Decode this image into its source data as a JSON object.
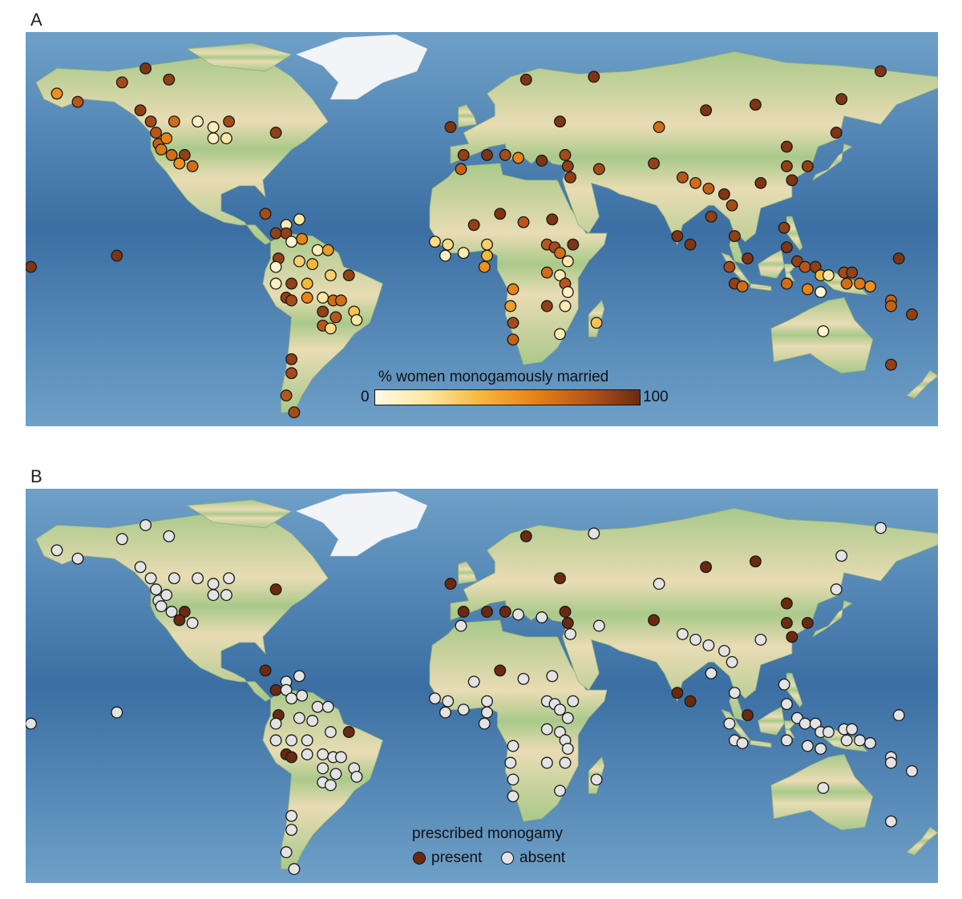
{
  "panels": {
    "a": {
      "label": "A"
    },
    "b": {
      "label": "B"
    }
  },
  "colors": {
    "ocean_dark": "#3b6fa3",
    "ocean_light": "#6ea0c8",
    "land_green": "#a9c98a",
    "land_tan": "#e9dcb4",
    "ice": "#f2f4f7",
    "present": "#6b2a10",
    "absent": "#e3e3e3"
  },
  "colorbar": {
    "title": "% women monogamously married",
    "min_label": "0",
    "max_label": "100",
    "stops": [
      "#fff9e4",
      "#fde7a2",
      "#f7b73a",
      "#e88314",
      "#b8561a",
      "#6b2a10"
    ]
  },
  "legend_b": {
    "title": "prescribed monogamy",
    "present_label": "present",
    "absent_label": "absent"
  },
  "sites": [
    {
      "lon": -160,
      "lat": 62,
      "pct": 55,
      "prescribed": false
    },
    {
      "lon": -152,
      "lat": 59,
      "pct": 80,
      "prescribed": false
    },
    {
      "lon": -135,
      "lat": 66,
      "pct": 85,
      "prescribed": false
    },
    {
      "lon": -126,
      "lat": 71,
      "pct": 95,
      "prescribed": false
    },
    {
      "lon": -128,
      "lat": 56,
      "pct": 90,
      "prescribed": false
    },
    {
      "lon": -124,
      "lat": 52,
      "pct": 85,
      "prescribed": false
    },
    {
      "lon": -122,
      "lat": 48,
      "pct": 80,
      "prescribed": false
    },
    {
      "lon": -121,
      "lat": 44,
      "pct": 75,
      "prescribed": false
    },
    {
      "lon": -120,
      "lat": 42,
      "pct": 65,
      "prescribed": false
    },
    {
      "lon": -118,
      "lat": 46,
      "pct": 60,
      "prescribed": false
    },
    {
      "lon": -116,
      "lat": 40,
      "pct": 70,
      "prescribed": false
    },
    {
      "lon": -111,
      "lat": 40,
      "pct": 90,
      "prescribed": true
    },
    {
      "lon": -113,
      "lat": 37,
      "pct": 55,
      "prescribed": true
    },
    {
      "lon": -108,
      "lat": 36,
      "pct": 70,
      "prescribed": false
    },
    {
      "lon": -115,
      "lat": 52,
      "pct": 70,
      "prescribed": false
    },
    {
      "lon": -106,
      "lat": 52,
      "pct": 10,
      "prescribed": false
    },
    {
      "lon": -100,
      "lat": 50,
      "pct": 15,
      "prescribed": false
    },
    {
      "lon": -100,
      "lat": 46,
      "pct": 10,
      "prescribed": false
    },
    {
      "lon": -95,
      "lat": 46,
      "pct": 20,
      "prescribed": false
    },
    {
      "lon": -94,
      "lat": 52,
      "pct": 85,
      "prescribed": false
    },
    {
      "lon": -76,
      "lat": 48,
      "pct": 90,
      "prescribed": true
    },
    {
      "lon": -117,
      "lat": 67,
      "pct": 90,
      "prescribed": false
    },
    {
      "lon": -170,
      "lat": 0,
      "pct": 95,
      "prescribed": false
    },
    {
      "lon": -137,
      "lat": 4,
      "pct": 95,
      "prescribed": false
    },
    {
      "lon": -72,
      "lat": 15,
      "pct": 15,
      "prescribed": false
    },
    {
      "lon": -67,
      "lat": 17,
      "pct": 20,
      "prescribed": false
    },
    {
      "lon": -80,
      "lat": 19,
      "pct": 85,
      "prescribed": true
    },
    {
      "lon": -76,
      "lat": 12,
      "pct": 90,
      "prescribed": true
    },
    {
      "lon": -72,
      "lat": 12,
      "pct": 90,
      "prescribed": false
    },
    {
      "lon": -70,
      "lat": 9,
      "pct": 5,
      "prescribed": false
    },
    {
      "lon": -66,
      "lat": 10,
      "pct": 60,
      "prescribed": false
    },
    {
      "lon": -60,
      "lat": 6,
      "pct": 15,
      "prescribed": false
    },
    {
      "lon": -56,
      "lat": 6,
      "pct": 50,
      "prescribed": false
    },
    {
      "lon": -75,
      "lat": 3,
      "pct": 90,
      "prescribed": true
    },
    {
      "lon": -76,
      "lat": 0,
      "pct": 5,
      "prescribed": false
    },
    {
      "lon": -67,
      "lat": 2,
      "pct": 30,
      "prescribed": false
    },
    {
      "lon": -62,
      "lat": 1,
      "pct": 40,
      "prescribed": false
    },
    {
      "lon": -55,
      "lat": -3,
      "pct": 30,
      "prescribed": false
    },
    {
      "lon": -48,
      "lat": -3,
      "pct": 90,
      "prescribed": true
    },
    {
      "lon": -76,
      "lat": -6,
      "pct": 10,
      "prescribed": false
    },
    {
      "lon": -70,
      "lat": -6,
      "pct": 90,
      "prescribed": false
    },
    {
      "lon": -64,
      "lat": -6,
      "pct": 40,
      "prescribed": false
    },
    {
      "lon": -72,
      "lat": -11,
      "pct": 90,
      "prescribed": true
    },
    {
      "lon": -70,
      "lat": -12,
      "pct": 85,
      "prescribed": true
    },
    {
      "lon": -64,
      "lat": -11,
      "pct": 60,
      "prescribed": false
    },
    {
      "lon": -58,
      "lat": -11,
      "pct": 20,
      "prescribed": false
    },
    {
      "lon": -54,
      "lat": -12,
      "pct": 70,
      "prescribed": false
    },
    {
      "lon": -51,
      "lat": -12,
      "pct": 70,
      "prescribed": false
    },
    {
      "lon": -58,
      "lat": -16,
      "pct": 90,
      "prescribed": false
    },
    {
      "lon": -53,
      "lat": -18,
      "pct": 80,
      "prescribed": false
    },
    {
      "lon": -46,
      "lat": -16,
      "pct": 35,
      "prescribed": false
    },
    {
      "lon": -45,
      "lat": -19,
      "pct": 20,
      "prescribed": false
    },
    {
      "lon": -58,
      "lat": -21,
      "pct": 80,
      "prescribed": false
    },
    {
      "lon": -55,
      "lat": -22,
      "pct": 25,
      "prescribed": false
    },
    {
      "lon": -70,
      "lat": -33,
      "pct": 90,
      "prescribed": false
    },
    {
      "lon": -70,
      "lat": -38,
      "pct": 85,
      "prescribed": false
    },
    {
      "lon": -72,
      "lat": -46,
      "pct": 80,
      "prescribed": false
    },
    {
      "lon": -69,
      "lat": -52,
      "pct": 85,
      "prescribed": false
    },
    {
      "lon": -9,
      "lat": 50,
      "pct": 95,
      "prescribed": true
    },
    {
      "lon": 20,
      "lat": 67,
      "pct": 95,
      "prescribed": true
    },
    {
      "lon": 46,
      "lat": 68,
      "pct": 95,
      "prescribed": false
    },
    {
      "lon": 33,
      "lat": 52,
      "pct": 95,
      "prescribed": true
    },
    {
      "lon": -4,
      "lat": 40,
      "pct": 90,
      "prescribed": true
    },
    {
      "lon": -5,
      "lat": 35,
      "pct": 75,
      "prescribed": false
    },
    {
      "lon": 5,
      "lat": 40,
      "pct": 95,
      "prescribed": true
    },
    {
      "lon": 12,
      "lat": 40,
      "pct": 85,
      "prescribed": true
    },
    {
      "lon": 17,
      "lat": 39,
      "pct": 60,
      "prescribed": false
    },
    {
      "lon": 26,
      "lat": 38,
      "pct": 95,
      "prescribed": false
    },
    {
      "lon": 35,
      "lat": 40,
      "pct": 85,
      "prescribed": true
    },
    {
      "lon": 36,
      "lat": 36,
      "pct": 90,
      "prescribed": true
    },
    {
      "lon": 37,
      "lat": 32,
      "pct": 90,
      "prescribed": false
    },
    {
      "lon": 10,
      "lat": 19,
      "pct": 95,
      "prescribed": true
    },
    {
      "lon": 0,
      "lat": 15,
      "pct": 90,
      "prescribed": false
    },
    {
      "lon": 19,
      "lat": 16,
      "pct": 80,
      "prescribed": false
    },
    {
      "lon": 30,
      "lat": 17,
      "pct": 95,
      "prescribed": false
    },
    {
      "lon": -15,
      "lat": 9,
      "pct": 25,
      "prescribed": false
    },
    {
      "lon": -10,
      "lat": 8,
      "pct": 25,
      "prescribed": false
    },
    {
      "lon": -4,
      "lat": 5,
      "pct": 15,
      "prescribed": false
    },
    {
      "lon": -11,
      "lat": 4,
      "pct": 10,
      "prescribed": false
    },
    {
      "lon": 5,
      "lat": 8,
      "pct": 30,
      "prescribed": false
    },
    {
      "lon": 5,
      "lat": 4,
      "pct": 40,
      "prescribed": false
    },
    {
      "lon": 4,
      "lat": 0,
      "pct": 55,
      "prescribed": false
    },
    {
      "lon": 28,
      "lat": 8,
      "pct": 80,
      "prescribed": false
    },
    {
      "lon": 31,
      "lat": 7,
      "pct": 85,
      "prescribed": false
    },
    {
      "lon": 33,
      "lat": 5,
      "pct": 70,
      "prescribed": false
    },
    {
      "lon": 38,
      "lat": 8,
      "pct": 95,
      "prescribed": false
    },
    {
      "lon": 36,
      "lat": 2,
      "pct": 20,
      "prescribed": false
    },
    {
      "lon": 28,
      "lat": -2,
      "pct": 70,
      "prescribed": false
    },
    {
      "lon": 33,
      "lat": -3,
      "pct": 15,
      "prescribed": false
    },
    {
      "lon": 35,
      "lat": -6,
      "pct": 80,
      "prescribed": false
    },
    {
      "lon": 36,
      "lat": -9,
      "pct": 10,
      "prescribed": false
    },
    {
      "lon": 15,
      "lat": -8,
      "pct": 60,
      "prescribed": false
    },
    {
      "lon": 14,
      "lat": -14,
      "pct": 50,
      "prescribed": false
    },
    {
      "lon": 28,
      "lat": -14,
      "pct": 90,
      "prescribed": false
    },
    {
      "lon": 35,
      "lat": -14,
      "pct": 15,
      "prescribed": false
    },
    {
      "lon": 15,
      "lat": -20,
      "pct": 85,
      "prescribed": false
    },
    {
      "lon": 33,
      "lat": -24,
      "pct": 15,
      "prescribed": false
    },
    {
      "lon": 15,
      "lat": -26,
      "pct": 75,
      "prescribed": false
    },
    {
      "lon": 47,
      "lat": -20,
      "pct": 35,
      "prescribed": false
    },
    {
      "lon": 48,
      "lat": 35,
      "pct": 85,
      "prescribed": false
    },
    {
      "lon": 71,
      "lat": 50,
      "pct": 70,
      "prescribed": false
    },
    {
      "lon": 69,
      "lat": 37,
      "pct": 90,
      "prescribed": true
    },
    {
      "lon": 80,
      "lat": 32,
      "pct": 80,
      "prescribed": false
    },
    {
      "lon": 85,
      "lat": 30,
      "pct": 70,
      "prescribed": false
    },
    {
      "lon": 90,
      "lat": 28,
      "pct": 75,
      "prescribed": false
    },
    {
      "lon": 96,
      "lat": 26,
      "pct": 95,
      "prescribed": false
    },
    {
      "lon": 99,
      "lat": 22,
      "pct": 85,
      "prescribed": false
    },
    {
      "lon": 91,
      "lat": 18,
      "pct": 90,
      "prescribed": false
    },
    {
      "lon": 110,
      "lat": 30,
      "pct": 95,
      "prescribed": false
    },
    {
      "lon": 89,
      "lat": 56,
      "pct": 95,
      "prescribed": true
    },
    {
      "lon": 108,
      "lat": 58,
      "pct": 95,
      "prescribed": true
    },
    {
      "lon": 120,
      "lat": 43,
      "pct": 95,
      "prescribed": true
    },
    {
      "lon": 120,
      "lat": 36,
      "pct": 90,
      "prescribed": true
    },
    {
      "lon": 122,
      "lat": 31,
      "pct": 95,
      "prescribed": true
    },
    {
      "lon": 128,
      "lat": 36,
      "pct": 90,
      "prescribed": true
    },
    {
      "lon": 139,
      "lat": 48,
      "pct": 95,
      "prescribed": false
    },
    {
      "lon": 141,
      "lat": 60,
      "pct": 95,
      "prescribed": false
    },
    {
      "lon": 156,
      "lat": 70,
      "pct": 95,
      "prescribed": false
    },
    {
      "lon": 78,
      "lat": 11,
      "pct": 95,
      "prescribed": true
    },
    {
      "lon": 83,
      "lat": 8,
      "pct": 95,
      "prescribed": true
    },
    {
      "lon": 100,
      "lat": 11,
      "pct": 90,
      "prescribed": false
    },
    {
      "lon": 105,
      "lat": 3,
      "pct": 95,
      "prescribed": true
    },
    {
      "lon": 98,
      "lat": 0,
      "pct": 85,
      "prescribed": false
    },
    {
      "lon": 100,
      "lat": -6,
      "pct": 90,
      "prescribed": false
    },
    {
      "lon": 103,
      "lat": -7,
      "pct": 70,
      "prescribed": false
    },
    {
      "lon": 119,
      "lat": 14,
      "pct": 90,
      "prescribed": false
    },
    {
      "lon": 120,
      "lat": 7,
      "pct": 95,
      "prescribed": false
    },
    {
      "lon": 124,
      "lat": 2,
      "pct": 90,
      "prescribed": false
    },
    {
      "lon": 127,
      "lat": 0,
      "pct": 80,
      "prescribed": false
    },
    {
      "lon": 131,
      "lat": 0,
      "pct": 90,
      "prescribed": false
    },
    {
      "lon": 133,
      "lat": -3,
      "pct": 40,
      "prescribed": false
    },
    {
      "lon": 136,
      "lat": -3,
      "pct": 20,
      "prescribed": false
    },
    {
      "lon": 142,
      "lat": -2,
      "pct": 85,
      "prescribed": false
    },
    {
      "lon": 145,
      "lat": -2,
      "pct": 90,
      "prescribed": false
    },
    {
      "lon": 143,
      "lat": -6,
      "pct": 70,
      "prescribed": false
    },
    {
      "lon": 148,
      "lat": -6,
      "pct": 65,
      "prescribed": false
    },
    {
      "lon": 152,
      "lat": -7,
      "pct": 55,
      "prescribed": false
    },
    {
      "lon": 120,
      "lat": -6,
      "pct": 70,
      "prescribed": false
    },
    {
      "lon": 128,
      "lat": -8,
      "pct": 60,
      "prescribed": false
    },
    {
      "lon": 133,
      "lat": -9,
      "pct": 5,
      "prescribed": false
    },
    {
      "lon": 134,
      "lat": -23,
      "pct": 5,
      "prescribed": false
    },
    {
      "lon": 163,
      "lat": 3,
      "pct": 95,
      "prescribed": false
    },
    {
      "lon": 160,
      "lat": -12,
      "pct": 75,
      "prescribed": false
    },
    {
      "lon": 160,
      "lat": -14,
      "pct": 75,
      "prescribed": false
    },
    {
      "lon": 168,
      "lat": -17,
      "pct": 90,
      "prescribed": false
    },
    {
      "lon": 160,
      "lat": -35,
      "pct": 90,
      "prescribed": false
    }
  ]
}
